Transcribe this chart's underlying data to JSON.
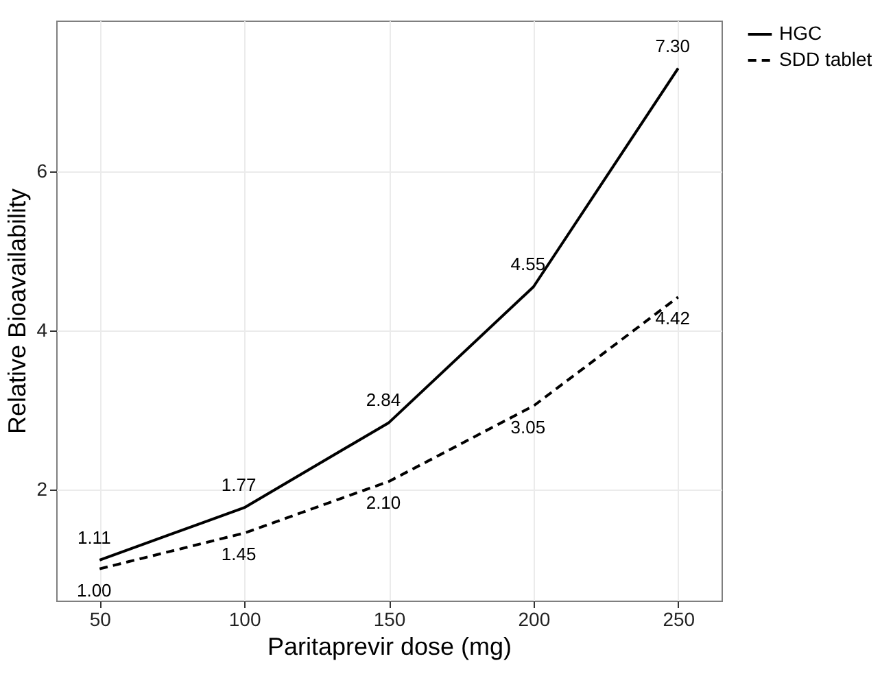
{
  "chart_data": {
    "type": "line",
    "xlabel": "Paritaprevir dose (mg)",
    "ylabel": "Relative Bioavailability",
    "x": [
      50,
      100,
      150,
      200,
      250
    ],
    "series": [
      {
        "name": "HGC",
        "color": "#000000",
        "line_style": "solid",
        "values": [
          1.11,
          1.77,
          2.84,
          4.55,
          7.3
        ],
        "value_labels": [
          "1.11",
          "1.77",
          "2.84",
          "4.55",
          "7.30"
        ]
      },
      {
        "name": "SDD tablet",
        "color": "#000000",
        "line_style": "dashed",
        "values": [
          1.0,
          1.45,
          2.1,
          3.05,
          4.42
        ],
        "value_labels": [
          "1.00",
          "1.45",
          "2.10",
          "3.05",
          "4.42"
        ]
      }
    ],
    "xlim": [
      35,
      265
    ],
    "ylim": [
      0.6,
      7.9
    ],
    "xticks": [
      50,
      100,
      150,
      200,
      250
    ],
    "yticks": [
      2,
      4,
      6
    ],
    "grid": true,
    "legend": "right"
  }
}
